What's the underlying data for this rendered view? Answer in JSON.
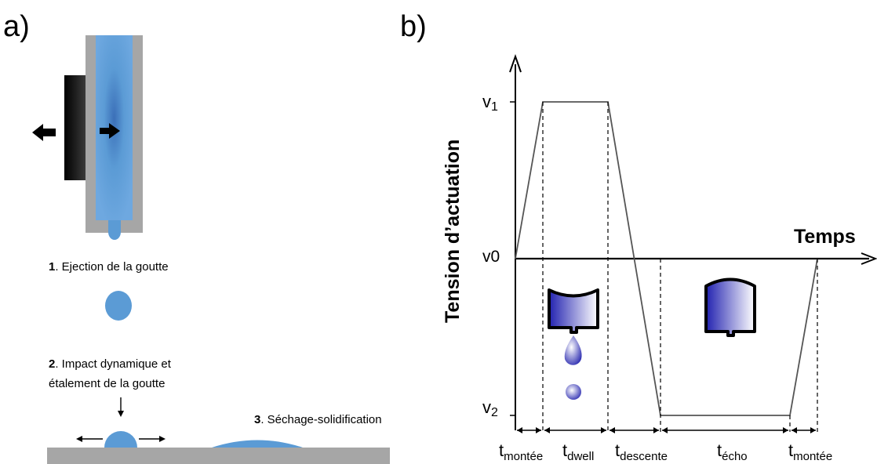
{
  "panel_a": {
    "label": "a)",
    "step1": {
      "num": "1",
      "text": ". Ejection de la goutte"
    },
    "step2": {
      "num": "2",
      "text_line1": ". Impact dynamique et",
      "text_line2": "étalement de la goutte"
    },
    "step3": {
      "num": "3",
      "text": ". Séchage-solidification"
    }
  },
  "panel_b": {
    "label": "b)",
    "y_axis_title": "Tension d’actuation",
    "x_axis_title": "Temps",
    "levels": {
      "v1_main": "v",
      "v1_sub": "1",
      "v0": "v0",
      "v2_main": "v",
      "v2_sub": "2"
    },
    "intervals": [
      {
        "main": "t",
        "sub": "montée"
      },
      {
        "main": "t",
        "sub": "dwell"
      },
      {
        "main": "t",
        "sub": "descente"
      },
      {
        "main": "t",
        "sub": "écho"
      },
      {
        "main": "t",
        "sub": "montée"
      }
    ]
  },
  "colors": {
    "drop_blue": "#5b9bd5",
    "nozzle_blue": "#3b73bf",
    "wall_gray": "#a6a6a6",
    "actuator_dark": "#1a1a1a",
    "chamber_navy": "#2a2aa8"
  }
}
